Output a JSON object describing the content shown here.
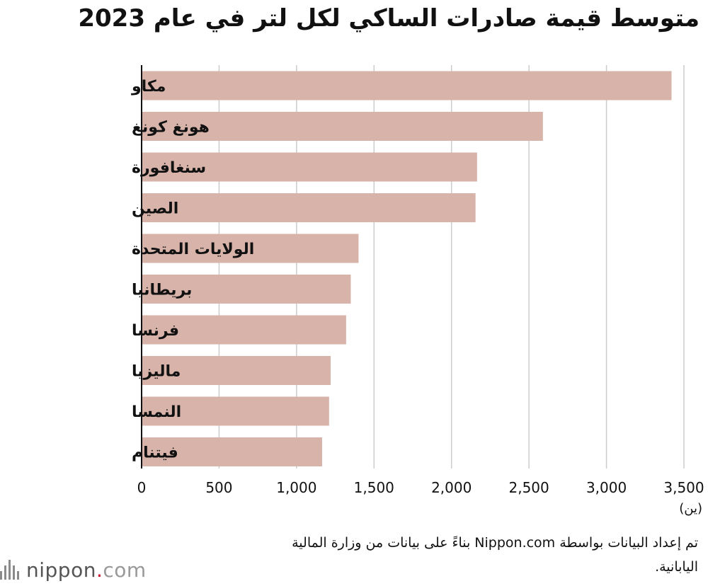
{
  "title": "متوسط قيمة صادرات الساكي لكل لتر في عام 2023",
  "source_note": "تم إعداد البيانات بواسطة Nippon.com بناءً على بيانات من وزارة المالية اليابانية.",
  "logo": {
    "name": "nippon",
    "dot": ".",
    "suffix": "com"
  },
  "colors": {
    "bar": "#d7b3a9",
    "grid": "#cccccc",
    "axis": "#111111"
  },
  "chart_data": {
    "type": "bar",
    "orientation": "horizontal",
    "title": "متوسط قيمة صادرات الساكي لكل لتر في عام 2023",
    "categories": [
      "مكاو",
      "هونغ كونغ",
      "سنغافورة",
      "الصين",
      "الولايات المتحدة",
      "بريطانيا",
      "فرنسا",
      "ماليزيا",
      "النمسا",
      "فيتنام"
    ],
    "values": [
      3420,
      2590,
      2165,
      2155,
      1400,
      1350,
      1320,
      1220,
      1210,
      1165
    ],
    "xlim": [
      0,
      3500
    ],
    "xticks": [
      0,
      500,
      1000,
      1500,
      2000,
      2500,
      3000,
      3500
    ],
    "xtick_labels": [
      "0",
      "500",
      "1,000",
      "1,500",
      "2,000",
      "2,500",
      "3,000",
      "3,500"
    ],
    "unit_label": "(ين)",
    "grid": true
  }
}
